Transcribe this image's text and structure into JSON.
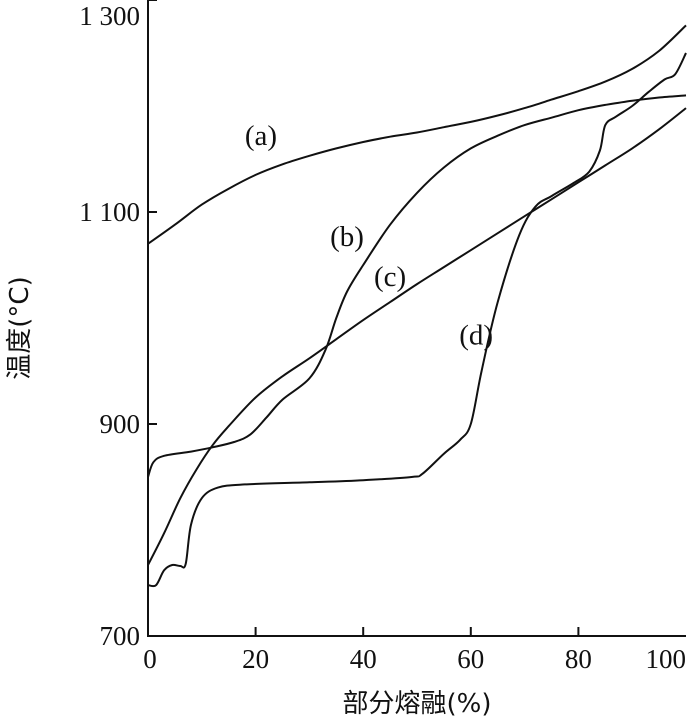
{
  "chart_data": {
    "type": "line",
    "xlabel": "部分熔融(%)",
    "ylabel": "温度(°C)",
    "xlim": [
      0,
      100
    ],
    "ylim": [
      700,
      1300
    ],
    "x_ticks": [
      {
        "value": 0,
        "label": "0"
      },
      {
        "value": 20,
        "label": "20"
      },
      {
        "value": 40,
        "label": "40"
      },
      {
        "value": 60,
        "label": "60"
      },
      {
        "value": 80,
        "label": "80"
      },
      {
        "value": 100,
        "label": "100"
      }
    ],
    "y_ticks": [
      {
        "value": 700,
        "label": "700"
      },
      {
        "value": 900,
        "label": "900"
      },
      {
        "value": 1100,
        "label": "1 100"
      },
      {
        "value": 1300,
        "label": "1 300"
      }
    ],
    "series": [
      {
        "name": "(a)",
        "label_at": [
          21,
          1163
        ],
        "points": [
          [
            0,
            1070
          ],
          [
            5,
            1088
          ],
          [
            10,
            1107
          ],
          [
            15,
            1122
          ],
          [
            20,
            1135
          ],
          [
            25,
            1145
          ],
          [
            30,
            1153
          ],
          [
            35,
            1160
          ],
          [
            40,
            1166
          ],
          [
            45,
            1171
          ],
          [
            50,
            1175
          ],
          [
            55,
            1180
          ],
          [
            60,
            1185
          ],
          [
            65,
            1191
          ],
          [
            70,
            1198
          ],
          [
            75,
            1206
          ],
          [
            80,
            1214
          ],
          [
            85,
            1223
          ],
          [
            90,
            1235
          ],
          [
            95,
            1252
          ],
          [
            100,
            1276
          ]
        ]
      },
      {
        "name": "(b)",
        "label_at": [
          37,
          1068
        ],
        "points": [
          [
            0,
            850
          ],
          [
            1,
            864
          ],
          [
            3,
            870
          ],
          [
            8,
            874
          ],
          [
            12,
            878
          ],
          [
            16,
            883
          ],
          [
            19,
            890
          ],
          [
            22,
            906
          ],
          [
            25,
            923
          ],
          [
            30,
            943
          ],
          [
            33,
            970
          ],
          [
            35,
            1000
          ],
          [
            37,
            1025
          ],
          [
            40,
            1050
          ],
          [
            45,
            1088
          ],
          [
            50,
            1118
          ],
          [
            55,
            1142
          ],
          [
            60,
            1160
          ],
          [
            65,
            1172
          ],
          [
            70,
            1182
          ],
          [
            75,
            1189
          ],
          [
            80,
            1196
          ],
          [
            85,
            1201
          ],
          [
            90,
            1205
          ],
          [
            95,
            1208
          ],
          [
            100,
            1210
          ]
        ]
      },
      {
        "name": "(c)",
        "label_at": [
          45,
          1030
        ],
        "points": [
          [
            0,
            767
          ],
          [
            3,
            797
          ],
          [
            6,
            830
          ],
          [
            9,
            857
          ],
          [
            12,
            880
          ],
          [
            15,
            898
          ],
          [
            20,
            925
          ],
          [
            25,
            945
          ],
          [
            30,
            962
          ],
          [
            35,
            980
          ],
          [
            40,
            998
          ],
          [
            45,
            1015
          ],
          [
            50,
            1032
          ],
          [
            55,
            1048
          ],
          [
            60,
            1064
          ],
          [
            65,
            1080
          ],
          [
            70,
            1096
          ],
          [
            75,
            1112
          ],
          [
            80,
            1128
          ],
          [
            85,
            1144
          ],
          [
            90,
            1160
          ],
          [
            95,
            1178
          ],
          [
            100,
            1198
          ]
        ]
      },
      {
        "name": "(d)",
        "label_at": [
          61,
          975
        ],
        "points": [
          [
            0,
            748
          ],
          [
            1.5,
            748
          ],
          [
            3,
            762
          ],
          [
            4.5,
            767
          ],
          [
            6,
            766
          ],
          [
            7,
            768
          ],
          [
            8,
            805
          ],
          [
            10,
            830
          ],
          [
            13,
            840
          ],
          [
            18,
            843
          ],
          [
            30,
            845
          ],
          [
            40,
            847
          ],
          [
            49,
            850
          ],
          [
            51,
            853
          ],
          [
            55,
            872
          ],
          [
            58,
            885
          ],
          [
            60,
            900
          ],
          [
            62,
            950
          ],
          [
            65,
            1015
          ],
          [
            69,
            1078
          ],
          [
            72,
            1105
          ],
          [
            75,
            1115
          ],
          [
            79,
            1127
          ],
          [
            82,
            1138
          ],
          [
            84,
            1158
          ],
          [
            85,
            1182
          ],
          [
            87,
            1190
          ],
          [
            90,
            1200
          ],
          [
            93,
            1213
          ],
          [
            96,
            1225
          ],
          [
            98,
            1230
          ],
          [
            100,
            1250
          ]
        ]
      }
    ]
  }
}
